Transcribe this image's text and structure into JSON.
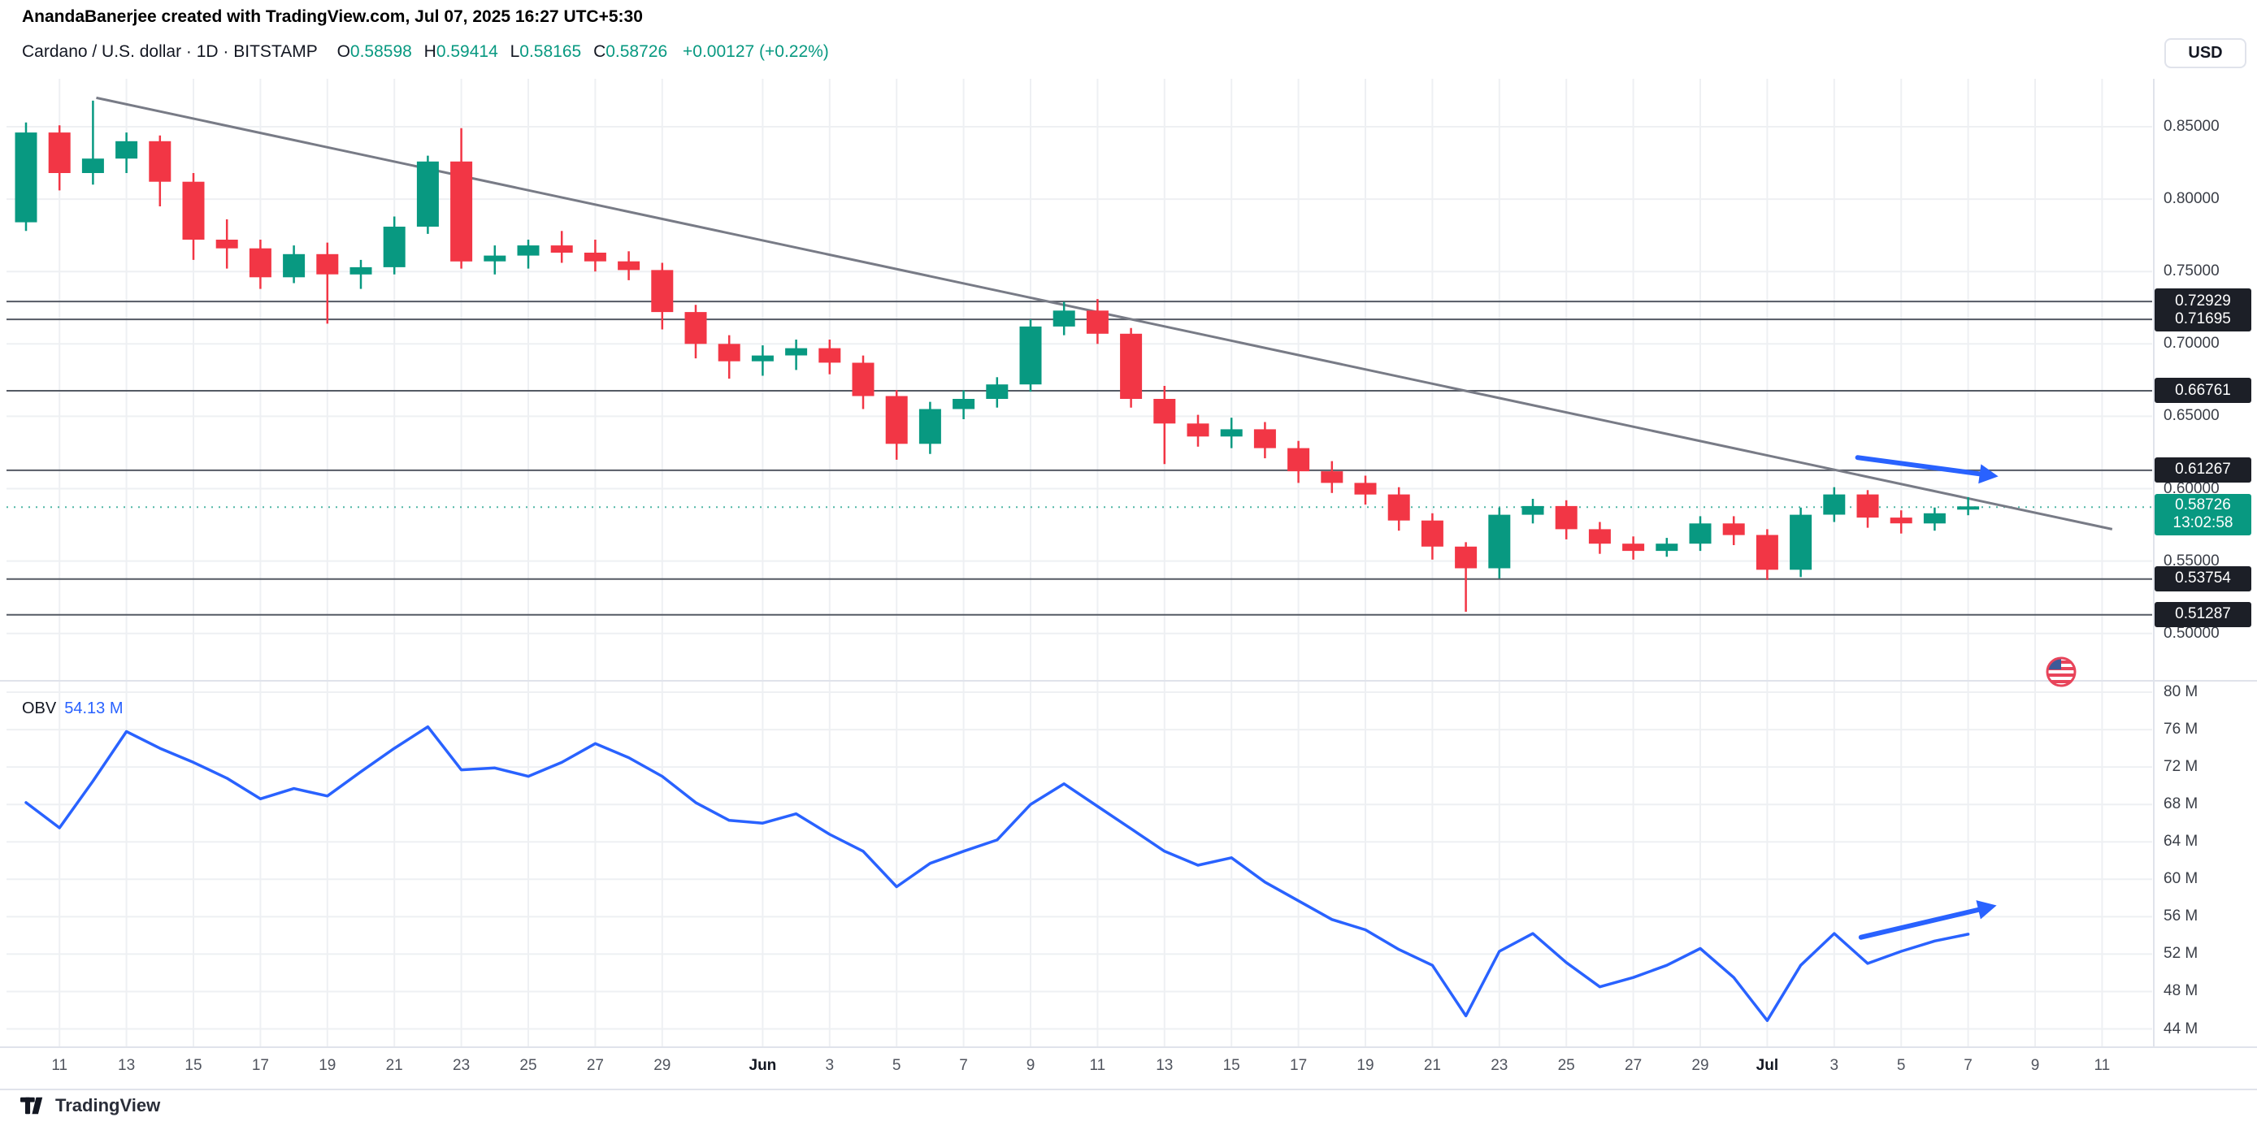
{
  "attribution": "AnandaBanerjee created with TradingView.com, Jul 07, 2025 16:27 UTC+5:30",
  "header": {
    "symbol_title": "Cardano / U.S. dollar · 1D · BITSTAMP",
    "ohlc": [
      {
        "label": "O",
        "value": "0.58598"
      },
      {
        "label": "H",
        "value": "0.59414"
      },
      {
        "label": "L",
        "value": "0.58165"
      },
      {
        "label": "C",
        "value": "0.58726"
      }
    ],
    "change": "+0.00127 (+0.22%)",
    "currency_button": "USD"
  },
  "price_label": {
    "price": "0.58726",
    "countdown": "13:02:58"
  },
  "obv": {
    "label": "OBV",
    "value": "54.13 M"
  },
  "footer": {
    "brand": "TradingView"
  },
  "colors": {
    "up": "#089981",
    "down": "#f23645",
    "blue": "#2962ff",
    "grid": "#eef0f3",
    "sep": "#e0e3eb",
    "level_line": "#555a64",
    "trendline": "#787b86",
    "label_bg": "#1c1f27"
  },
  "chart_data": {
    "type": "candlestick",
    "title": "Cardano / U.S. dollar",
    "exchange": "BITSTAMP",
    "interval": "1D",
    "price_pane": {
      "ylim": [
        0.49,
        0.883
      ],
      "y_ticks": [
        0.85,
        0.8,
        0.75,
        0.7,
        0.65,
        0.6,
        0.55,
        0.5
      ],
      "levels": [
        0.72929,
        0.71695,
        0.66761,
        0.61267,
        0.53754,
        0.51287
      ],
      "current_price": 0.58726,
      "trendline": {
        "x1": 2.1,
        "p1": 0.87,
        "x2": 62.3,
        "p2": 0.572
      },
      "arrow": {
        "x1": 54.7,
        "p1": 0.6215,
        "x2": 58.9,
        "p2": 0.6085
      },
      "candles": [
        {
          "t": "May 10",
          "o": 0.784,
          "h": 0.853,
          "l": 0.778,
          "c": 0.846
        },
        {
          "t": "May 11",
          "o": 0.846,
          "h": 0.851,
          "l": 0.806,
          "c": 0.818
        },
        {
          "t": "May 12",
          "o": 0.818,
          "h": 0.868,
          "l": 0.81,
          "c": 0.828
        },
        {
          "t": "May 13",
          "o": 0.828,
          "h": 0.846,
          "l": 0.818,
          "c": 0.84
        },
        {
          "t": "May 14",
          "o": 0.84,
          "h": 0.844,
          "l": 0.795,
          "c": 0.812
        },
        {
          "t": "May 15",
          "o": 0.812,
          "h": 0.818,
          "l": 0.758,
          "c": 0.772
        },
        {
          "t": "May 16",
          "o": 0.772,
          "h": 0.786,
          "l": 0.752,
          "c": 0.766
        },
        {
          "t": "May 17",
          "o": 0.766,
          "h": 0.772,
          "l": 0.738,
          "c": 0.746
        },
        {
          "t": "May 18",
          "o": 0.746,
          "h": 0.768,
          "l": 0.742,
          "c": 0.762
        },
        {
          "t": "May 19",
          "o": 0.762,
          "h": 0.77,
          "l": 0.714,
          "c": 0.748
        },
        {
          "t": "May 20",
          "o": 0.748,
          "h": 0.758,
          "l": 0.738,
          "c": 0.753
        },
        {
          "t": "May 21",
          "o": 0.753,
          "h": 0.788,
          "l": 0.748,
          "c": 0.781
        },
        {
          "t": "May 22",
          "o": 0.781,
          "h": 0.83,
          "l": 0.776,
          "c": 0.826
        },
        {
          "t": "May 23",
          "o": 0.826,
          "h": 0.849,
          "l": 0.752,
          "c": 0.757
        },
        {
          "t": "May 24",
          "o": 0.757,
          "h": 0.768,
          "l": 0.748,
          "c": 0.761
        },
        {
          "t": "May 25",
          "o": 0.761,
          "h": 0.772,
          "l": 0.752,
          "c": 0.768
        },
        {
          "t": "May 26",
          "o": 0.768,
          "h": 0.778,
          "l": 0.756,
          "c": 0.763
        },
        {
          "t": "May 27",
          "o": 0.763,
          "h": 0.772,
          "l": 0.75,
          "c": 0.757
        },
        {
          "t": "May 28",
          "o": 0.757,
          "h": 0.764,
          "l": 0.744,
          "c": 0.751
        },
        {
          "t": "May 29",
          "o": 0.751,
          "h": 0.756,
          "l": 0.71,
          "c": 0.722
        },
        {
          "t": "May 30",
          "o": 0.722,
          "h": 0.727,
          "l": 0.69,
          "c": 0.7
        },
        {
          "t": "May 31",
          "o": 0.7,
          "h": 0.706,
          "l": 0.676,
          "c": 0.688
        },
        {
          "t": "Jun 1",
          "o": 0.688,
          "h": 0.699,
          "l": 0.678,
          "c": 0.692
        },
        {
          "t": "Jun 2",
          "o": 0.692,
          "h": 0.703,
          "l": 0.682,
          "c": 0.697
        },
        {
          "t": "Jun 3",
          "o": 0.697,
          "h": 0.703,
          "l": 0.679,
          "c": 0.687
        },
        {
          "t": "Jun 4",
          "o": 0.687,
          "h": 0.692,
          "l": 0.655,
          "c": 0.664
        },
        {
          "t": "Jun 5",
          "o": 0.664,
          "h": 0.668,
          "l": 0.62,
          "c": 0.631
        },
        {
          "t": "Jun 6",
          "o": 0.631,
          "h": 0.66,
          "l": 0.624,
          "c": 0.655
        },
        {
          "t": "Jun 7",
          "o": 0.655,
          "h": 0.668,
          "l": 0.648,
          "c": 0.662
        },
        {
          "t": "Jun 8",
          "o": 0.662,
          "h": 0.677,
          "l": 0.656,
          "c": 0.672
        },
        {
          "t": "Jun 9",
          "o": 0.672,
          "h": 0.717,
          "l": 0.667,
          "c": 0.712
        },
        {
          "t": "Jun 10",
          "o": 0.712,
          "h": 0.729,
          "l": 0.706,
          "c": 0.723
        },
        {
          "t": "Jun 11",
          "o": 0.723,
          "h": 0.731,
          "l": 0.7,
          "c": 0.707
        },
        {
          "t": "Jun 12",
          "o": 0.707,
          "h": 0.711,
          "l": 0.656,
          "c": 0.662
        },
        {
          "t": "Jun 13",
          "o": 0.662,
          "h": 0.671,
          "l": 0.617,
          "c": 0.645
        },
        {
          "t": "Jun 14",
          "o": 0.645,
          "h": 0.651,
          "l": 0.629,
          "c": 0.636
        },
        {
          "t": "Jun 15",
          "o": 0.636,
          "h": 0.649,
          "l": 0.628,
          "c": 0.641
        },
        {
          "t": "Jun 16",
          "o": 0.641,
          "h": 0.646,
          "l": 0.621,
          "c": 0.628
        },
        {
          "t": "Jun 17",
          "o": 0.628,
          "h": 0.633,
          "l": 0.604,
          "c": 0.612
        },
        {
          "t": "Jun 18",
          "o": 0.612,
          "h": 0.619,
          "l": 0.597,
          "c": 0.604
        },
        {
          "t": "Jun 19",
          "o": 0.604,
          "h": 0.609,
          "l": 0.589,
          "c": 0.596
        },
        {
          "t": "Jun 20",
          "o": 0.596,
          "h": 0.601,
          "l": 0.571,
          "c": 0.578
        },
        {
          "t": "Jun 21",
          "o": 0.578,
          "h": 0.583,
          "l": 0.551,
          "c": 0.56
        },
        {
          "t": "Jun 22",
          "o": 0.56,
          "h": 0.563,
          "l": 0.515,
          "c": 0.545
        },
        {
          "t": "Jun 23",
          "o": 0.545,
          "h": 0.587,
          "l": 0.538,
          "c": 0.582
        },
        {
          "t": "Jun 24",
          "o": 0.582,
          "h": 0.593,
          "l": 0.576,
          "c": 0.588
        },
        {
          "t": "Jun 25",
          "o": 0.588,
          "h": 0.592,
          "l": 0.565,
          "c": 0.572
        },
        {
          "t": "Jun 26",
          "o": 0.572,
          "h": 0.577,
          "l": 0.555,
          "c": 0.562
        },
        {
          "t": "Jun 27",
          "o": 0.562,
          "h": 0.567,
          "l": 0.551,
          "c": 0.557
        },
        {
          "t": "Jun 28",
          "o": 0.557,
          "h": 0.566,
          "l": 0.553,
          "c": 0.562
        },
        {
          "t": "Jun 29",
          "o": 0.562,
          "h": 0.581,
          "l": 0.557,
          "c": 0.576
        },
        {
          "t": "Jun 30",
          "o": 0.576,
          "h": 0.581,
          "l": 0.561,
          "c": 0.568
        },
        {
          "t": "Jul 1",
          "o": 0.568,
          "h": 0.572,
          "l": 0.537,
          "c": 0.544
        },
        {
          "t": "Jul 2",
          "o": 0.544,
          "h": 0.587,
          "l": 0.539,
          "c": 0.582
        },
        {
          "t": "Jul 3",
          "o": 0.582,
          "h": 0.601,
          "l": 0.577,
          "c": 0.596
        },
        {
          "t": "Jul 4",
          "o": 0.596,
          "h": 0.599,
          "l": 0.573,
          "c": 0.58
        },
        {
          "t": "Jul 5",
          "o": 0.58,
          "h": 0.585,
          "l": 0.569,
          "c": 0.576
        },
        {
          "t": "Jul 6",
          "o": 0.576,
          "h": 0.587,
          "l": 0.571,
          "c": 0.583
        },
        {
          "t": "Jul 7",
          "o": 0.58598,
          "h": 0.59414,
          "l": 0.58165,
          "c": 0.58726
        }
      ]
    },
    "obv_pane": {
      "name": "OBV",
      "units": "millions",
      "ylim": [
        41.7,
        80.5
      ],
      "y_ticks": [
        80,
        76,
        72,
        68,
        64,
        60,
        56,
        52,
        48,
        44
      ],
      "last_value": 54.13,
      "arrow": {
        "x1": 54.8,
        "v1": 53.8,
        "x2": 58.85,
        "v2": 57.2
      },
      "values": [
        68.2,
        65.5,
        70.5,
        75.8,
        74.0,
        72.5,
        70.8,
        68.6,
        69.7,
        68.9,
        71.5,
        74.0,
        76.3,
        71.7,
        71.9,
        71.0,
        72.5,
        74.5,
        73.0,
        71.0,
        68.2,
        66.3,
        66.0,
        67.0,
        64.8,
        63.0,
        59.2,
        61.7,
        63.0,
        64.2,
        68.0,
        70.2,
        67.8,
        65.4,
        63.0,
        61.5,
        62.3,
        59.7,
        57.7,
        55.7,
        54.6,
        52.5,
        50.8,
        45.4,
        52.3,
        54.2,
        51.1,
        48.5,
        49.5,
        50.8,
        52.6,
        49.5,
        44.9,
        50.8,
        54.2,
        51.0,
        52.3,
        53.4,
        54.13
      ]
    },
    "x_axis": {
      "total_slots": 63,
      "ticks": [
        {
          "i": 1,
          "label": "11"
        },
        {
          "i": 3,
          "label": "13"
        },
        {
          "i": 5,
          "label": "15"
        },
        {
          "i": 7,
          "label": "17"
        },
        {
          "i": 9,
          "label": "19"
        },
        {
          "i": 11,
          "label": "21"
        },
        {
          "i": 13,
          "label": "23"
        },
        {
          "i": 15,
          "label": "25"
        },
        {
          "i": 17,
          "label": "27"
        },
        {
          "i": 19,
          "label": "29"
        },
        {
          "i": 22,
          "label": "Jun",
          "major": true
        },
        {
          "i": 24,
          "label": "3"
        },
        {
          "i": 26,
          "label": "5"
        },
        {
          "i": 28,
          "label": "7"
        },
        {
          "i": 30,
          "label": "9"
        },
        {
          "i": 32,
          "label": "11"
        },
        {
          "i": 34,
          "label": "13"
        },
        {
          "i": 36,
          "label": "15"
        },
        {
          "i": 38,
          "label": "17"
        },
        {
          "i": 40,
          "label": "19"
        },
        {
          "i": 42,
          "label": "21"
        },
        {
          "i": 44,
          "label": "23"
        },
        {
          "i": 46,
          "label": "25"
        },
        {
          "i": 48,
          "label": "27"
        },
        {
          "i": 50,
          "label": "29"
        },
        {
          "i": 52,
          "label": "Jul",
          "major": true
        },
        {
          "i": 54,
          "label": "3"
        },
        {
          "i": 56,
          "label": "5"
        },
        {
          "i": 58,
          "label": "7"
        },
        {
          "i": 60,
          "label": "9"
        },
        {
          "i": 62,
          "label": "11"
        }
      ]
    }
  }
}
